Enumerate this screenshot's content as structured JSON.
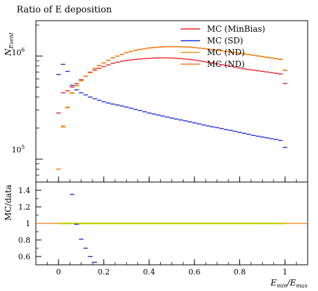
{
  "title": "Ratio of E deposition",
  "colors": {
    "minbias": "#e8202a",
    "sd": "#1f2bd6",
    "nd1": "#f09a1c",
    "nd2": "#f07a18",
    "ratio_band": "#c9d10f"
  },
  "chart_data": [
    {
      "type": "scatter",
      "panel": "main",
      "ylabel": "N_Event",
      "yscale": "log",
      "ylim": [
        60000,
        2200000
      ],
      "xlim": [
        -0.1,
        1.1
      ],
      "ytick_labels": [
        "10^5",
        "10^6"
      ],
      "ytick_values": [
        100000,
        1000000
      ],
      "legend_position": "top-right",
      "legend": [
        "MC (MinBias)",
        "MC (SD)",
        "MC (ND)",
        "MC (ND)"
      ],
      "x": [
        0.0,
        0.02,
        0.04,
        0.06,
        0.08,
        0.1,
        0.12,
        0.14,
        0.16,
        0.18,
        0.2,
        0.22,
        0.24,
        0.26,
        0.28,
        0.3,
        0.32,
        0.34,
        0.36,
        0.38,
        0.4,
        0.42,
        0.44,
        0.46,
        0.48,
        0.5,
        0.52,
        0.54,
        0.56,
        0.58,
        0.6,
        0.62,
        0.64,
        0.66,
        0.68,
        0.7,
        0.72,
        0.74,
        0.76,
        0.78,
        0.8,
        0.82,
        0.84,
        0.86,
        0.88,
        0.9,
        0.92,
        0.94,
        0.96,
        0.98,
        1.0
      ],
      "series": [
        {
          "name": "MC (MinBias)",
          "color_key": "minbias",
          "values": [
            280000,
            440000,
            460000,
            500000,
            540000,
            590000,
            640000,
            690000,
            730000,
            760000,
            790000,
            820000,
            850000,
            870000,
            890000,
            905000,
            915000,
            925000,
            935000,
            945000,
            950000,
            955000,
            958000,
            960000,
            958000,
            955000,
            950000,
            945000,
            935000,
            925000,
            915000,
            900000,
            885000,
            870000,
            855000,
            840000,
            825000,
            810000,
            795000,
            780000,
            765000,
            750000,
            740000,
            730000,
            720000,
            710000,
            700000,
            690000,
            680000,
            670000,
            540000
          ]
        },
        {
          "name": "MC (SD)",
          "color_key": "sd",
          "values": [
            660000,
            830000,
            710000,
            520000,
            470000,
            440000,
            420000,
            400000,
            385000,
            372000,
            360000,
            350000,
            342000,
            335000,
            328000,
            320000,
            312000,
            304000,
            296000,
            288000,
            280000,
            274000,
            268000,
            262000,
            256000,
            250000,
            245000,
            240000,
            235000,
            230000,
            225000,
            220000,
            215000,
            210000,
            206000,
            202000,
            198000,
            194000,
            190000,
            186000,
            182000,
            178000,
            174000,
            170000,
            167000,
            164000,
            161000,
            158000,
            155000,
            152000,
            130000
          ]
        },
        {
          "name": "MC (ND)",
          "color_key": "nd1",
          "values": [
            80000,
            210000,
            320000,
            440000,
            520000,
            580000,
            640000,
            700000,
            760000,
            810000,
            860000,
            910000,
            960000,
            1000000,
            1040000,
            1080000,
            1110000,
            1140000,
            1160000,
            1180000,
            1200000,
            1210000,
            1220000,
            1228000,
            1232000,
            1235000,
            1235000,
            1232000,
            1228000,
            1220000,
            1210000,
            1198000,
            1185000,
            1170000,
            1155000,
            1140000,
            1125000,
            1110000,
            1095000,
            1080000,
            1065000,
            1050000,
            1035000,
            1020000,
            1005000,
            990000,
            975000,
            960000,
            945000,
            930000,
            730000
          ]
        },
        {
          "name": "MC (ND)",
          "color_key": "nd2",
          "values": [
            80000,
            205000,
            315000,
            435000,
            515000,
            575000,
            635000,
            695000,
            755000,
            805000,
            855000,
            905000,
            955000,
            995000,
            1035000,
            1075000,
            1105000,
            1135000,
            1155000,
            1175000,
            1195000,
            1205000,
            1215000,
            1223000,
            1227000,
            1230000,
            1230000,
            1227000,
            1223000,
            1215000,
            1205000,
            1193000,
            1180000,
            1165000,
            1150000,
            1135000,
            1120000,
            1105000,
            1090000,
            1075000,
            1060000,
            1045000,
            1030000,
            1015000,
            1000000,
            985000,
            970000,
            955000,
            940000,
            925000,
            725000
          ]
        }
      ]
    },
    {
      "type": "scatter",
      "panel": "ratio",
      "ylabel": "MC/data",
      "xlabel": "E_min/E_max",
      "xlim": [
        -0.1,
        1.1
      ],
      "ylim": [
        0.5,
        1.5
      ],
      "yticks": [
        0.6,
        0.8,
        1,
        1.2,
        1.4
      ],
      "ytick_labels": [
        "0.6",
        "0.8",
        "1",
        "1.2",
        "1.4"
      ],
      "xticks": [
        0,
        0.2,
        0.4,
        0.6,
        0.8,
        1
      ],
      "xtick_labels": [
        "0",
        "0.2",
        "0.4",
        "0.6",
        "0.8",
        "1"
      ],
      "reference_line": 1,
      "ratio_points": {
        "color_key": "sd",
        "x": [
          0.06,
          0.08,
          0.1,
          0.12,
          0.14,
          0.16
        ],
        "y": [
          1.35,
          0.99,
          0.81,
          0.7,
          0.6,
          0.53
        ]
      }
    }
  ]
}
